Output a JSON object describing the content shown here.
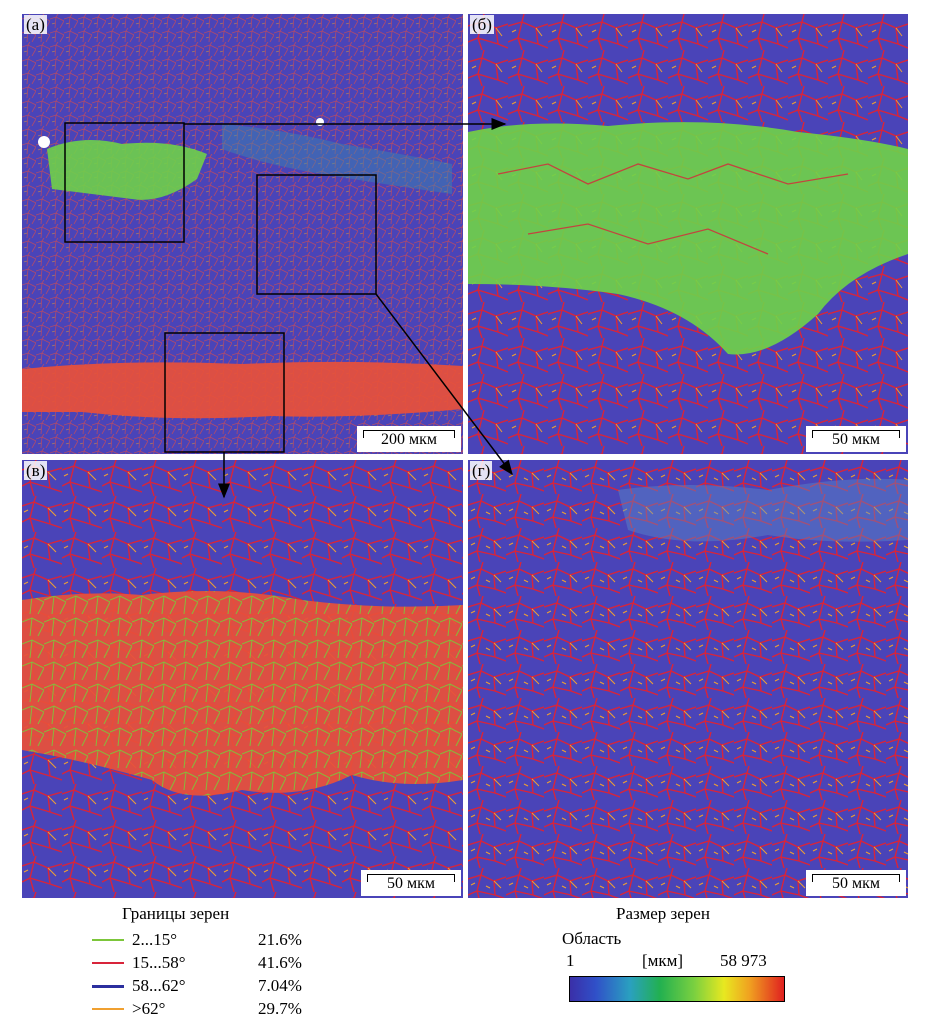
{
  "panels": {
    "a": {
      "label": "(а)",
      "scale": "200 мкм"
    },
    "b": {
      "label": "(б)",
      "scale": "50 мкм"
    },
    "v": {
      "label": "(в)",
      "scale": "50 мкм"
    },
    "g": {
      "label": "(г)",
      "scale": "50 мкм"
    }
  },
  "boundaries_legend": {
    "title": "Границы зерен",
    "items": [
      {
        "angle": "2...15°",
        "percent": "21.6%",
        "color": "#7cc63a"
      },
      {
        "angle": "15...58°",
        "percent": "41.6%",
        "color": "#d8243a"
      },
      {
        "angle": "58...62°",
        "percent": "7.04%",
        "color": "#2b2f9e"
      },
      {
        "angle": ">62°",
        "percent": "29.7%",
        "color": "#f0a030"
      }
    ]
  },
  "size_legend": {
    "title": "Размер зерен",
    "area_label": "Область",
    "min": "1",
    "unit": "[мкм]",
    "max": "58 973"
  },
  "colors": {
    "matrix": "#4a44b8",
    "green_band": "#6fd04a",
    "red_band": "#e8503a",
    "grain_boundary": "#d8243a"
  }
}
